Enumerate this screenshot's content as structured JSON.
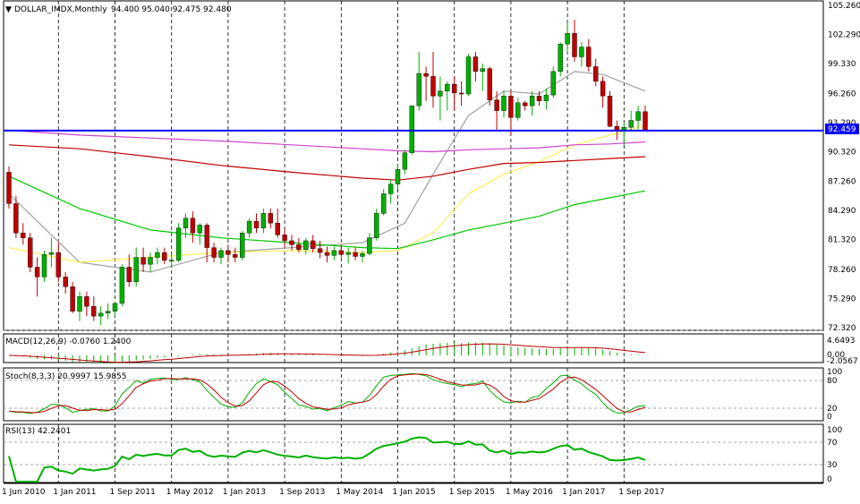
{
  "header": {
    "arrow": "▼",
    "symbol": "DOLLAR_IMDX,Monthly",
    "ohlc": "94.400 95.040 92.475 92.480"
  },
  "colors": {
    "up": "#00b000",
    "down": "#c00000",
    "hline": "#0000ff",
    "ma_grey": "#a0a0a0",
    "ma_yellow": "#ffee55",
    "ma_green": "#00c800",
    "ma_red": "#c00000",
    "ma_magenta": "#cc44cc",
    "grid": "#000000"
  },
  "price_pane": {
    "price_labels": [
      "105.260",
      "102.290",
      "99.330",
      "96.260",
      "93.290",
      "90.320",
      "87.260",
      "84.290",
      "81.320",
      "78.260",
      "75.290",
      "72.320"
    ],
    "current_price_label": "92.459",
    "hline_value": 92.459
  },
  "macd_pane": {
    "label": "MACD(12,26,9) -0.0760 1.2400",
    "axis_labels": [
      "4.6493",
      "0.00",
      "-2.0567"
    ]
  },
  "stoch_pane": {
    "label": "Stoch(8,3,3) 20.9997 15.9855",
    "axis_labels": [
      "100",
      "80",
      "20",
      "0"
    ]
  },
  "rsi_pane": {
    "label": "RSI(13) 42.2401",
    "axis_labels": [
      "100",
      "70",
      "30",
      "0"
    ]
  },
  "time_axis": {
    "labels": [
      "1 Jun 2010",
      "1 Jan 2011",
      "1 Sep 2011",
      "1 May 2012",
      "1 Jan 2013",
      "1 Sep 2013",
      "1 May 2014",
      "1 Jan 2015",
      "1 Sep 2015",
      "1 May 2016",
      "1 Jan 2017",
      "1 Sep 2017"
    ]
  },
  "chart_data": {
    "type": "candlestick",
    "title": "DOLLAR_IMDX,Monthly",
    "ylim": [
      72.32,
      105.26
    ],
    "start": "Jun 2010",
    "candles": [
      [
        88.2,
        88.8,
        84.5,
        85.0
      ],
      [
        85.0,
        85.8,
        81.5,
        82.0
      ],
      [
        82.0,
        83.0,
        80.8,
        81.5
      ],
      [
        81.5,
        82.0,
        78.0,
        78.5
      ],
      [
        78.5,
        79.5,
        75.5,
        77.5
      ],
      [
        77.5,
        80.2,
        77.0,
        79.8
      ],
      [
        79.8,
        81.5,
        78.5,
        80.0
      ],
      [
        80.0,
        81.0,
        77.0,
        77.5
      ],
      [
        77.5,
        78.0,
        75.8,
        76.5
      ],
      [
        76.5,
        77.0,
        73.8,
        74.0
      ],
      [
        74.0,
        76.0,
        73.0,
        75.5
      ],
      [
        75.5,
        76.0,
        73.5,
        74.5
      ],
      [
        74.5,
        75.5,
        73.0,
        73.5
      ],
      [
        73.5,
        74.5,
        72.6,
        73.8
      ],
      [
        73.8,
        74.8,
        73.2,
        74.0
      ],
      [
        74.0,
        75.0,
        73.5,
        74.8
      ],
      [
        74.8,
        78.8,
        74.5,
        78.5
      ],
      [
        78.5,
        79.8,
        76.5,
        77.0
      ],
      [
        77.0,
        80.5,
        76.5,
        79.5
      ],
      [
        79.5,
        80.5,
        78.0,
        78.8
      ],
      [
        78.8,
        80.0,
        78.0,
        79.5
      ],
      [
        79.5,
        80.5,
        78.8,
        80.0
      ],
      [
        80.0,
        80.5,
        78.8,
        79.2
      ],
      [
        79.2,
        79.8,
        78.5,
        79.2
      ],
      [
        79.2,
        83.0,
        79.0,
        82.5
      ],
      [
        82.5,
        84.0,
        81.5,
        83.5
      ],
      [
        83.5,
        84.2,
        81.0,
        82.0
      ],
      [
        82.0,
        83.0,
        80.8,
        82.8
      ],
      [
        82.8,
        83.0,
        79.0,
        80.5
      ],
      [
        80.5,
        81.0,
        79.0,
        79.5
      ],
      [
        79.5,
        80.5,
        78.8,
        80.2
      ],
      [
        80.2,
        80.8,
        79.0,
        79.8
      ],
      [
        79.8,
        80.5,
        79.0,
        79.5
      ],
      [
        79.5,
        82.2,
        79.2,
        82.0
      ],
      [
        82.0,
        83.5,
        81.5,
        83.2
      ],
      [
        83.2,
        84.0,
        82.0,
        82.5
      ],
      [
        82.5,
        84.5,
        82.0,
        84.0
      ],
      [
        84.0,
        84.5,
        82.5,
        83.0
      ],
      [
        83.0,
        84.5,
        81.5,
        81.8
      ],
      [
        81.8,
        82.5,
        80.5,
        81.2
      ],
      [
        81.2,
        81.8,
        80.2,
        80.8
      ],
      [
        80.8,
        81.5,
        80.0,
        80.3
      ],
      [
        80.3,
        81.5,
        79.8,
        81.2
      ],
      [
        81.2,
        81.8,
        80.0,
        80.4
      ],
      [
        80.4,
        81.2,
        79.4,
        80.0
      ],
      [
        80.0,
        80.6,
        79.0,
        79.7
      ],
      [
        79.7,
        80.6,
        79.2,
        80.2
      ],
      [
        80.2,
        80.8,
        79.5,
        79.8
      ],
      [
        79.8,
        80.5,
        78.9,
        80.0
      ],
      [
        80.0,
        80.5,
        79.2,
        79.6
      ],
      [
        79.6,
        80.2,
        79.0,
        79.9
      ],
      [
        79.9,
        82.0,
        79.7,
        81.5
      ],
      [
        81.5,
        84.5,
        81.2,
        84.0
      ],
      [
        84.0,
        86.5,
        83.8,
        86.0
      ],
      [
        86.0,
        87.5,
        85.0,
        87.0
      ],
      [
        87.0,
        89.0,
        86.5,
        88.5
      ],
      [
        88.5,
        90.5,
        88.0,
        90.2
      ],
      [
        90.2,
        95.0,
        90.0,
        95.0
      ],
      [
        95.0,
        100.5,
        94.5,
        98.3
      ],
      [
        98.3,
        99.0,
        95.5,
        98.0
      ],
      [
        98.0,
        100.5,
        94.8,
        96.0
      ],
      [
        96.0,
        98.0,
        93.5,
        96.5
      ],
      [
        96.5,
        97.5,
        94.5,
        97.2
      ],
      [
        97.2,
        98.0,
        94.5,
        96.3
      ],
      [
        96.3,
        97.5,
        95.0,
        96.2
      ],
      [
        96.2,
        100.3,
        96.0,
        100.0
      ],
      [
        100.0,
        100.5,
        97.5,
        98.5
      ],
      [
        98.5,
        99.3,
        96.5,
        98.8
      ],
      [
        98.8,
        99.0,
        95.0,
        95.6
      ],
      [
        95.6,
        96.5,
        92.5,
        94.5
      ],
      [
        94.5,
        96.5,
        93.8,
        96.0
      ],
      [
        96.0,
        96.5,
        92.0,
        93.8
      ],
      [
        93.8,
        95.8,
        93.5,
        95.3
      ],
      [
        95.3,
        95.5,
        94.5,
        95.0
      ],
      [
        95.0,
        96.5,
        94.0,
        96.0
      ],
      [
        96.0,
        96.5,
        95.0,
        95.5
      ],
      [
        95.5,
        96.8,
        94.6,
        96.1
      ],
      [
        96.1,
        99.0,
        95.8,
        98.5
      ],
      [
        98.5,
        101.5,
        98.0,
        101.3
      ],
      [
        101.3,
        103.5,
        100.5,
        102.4
      ],
      [
        102.4,
        103.8,
        99.5,
        100.0
      ],
      [
        100.0,
        101.5,
        99.0,
        101.0
      ],
      [
        101.0,
        101.8,
        98.5,
        99.0
      ],
      [
        99.0,
        99.8,
        97.0,
        97.5
      ],
      [
        97.5,
        98.0,
        94.8,
        96.0
      ],
      [
        96.0,
        96.5,
        92.8,
        92.9
      ],
      [
        92.9,
        93.5,
        91.5,
        92.5
      ],
      [
        92.5,
        93.3,
        91.0,
        92.8
      ],
      [
        92.8,
        94.5,
        92.5,
        93.5
      ],
      [
        93.5,
        95.0,
        92.6,
        94.4
      ],
      [
        94.4,
        95.04,
        92.475,
        92.48
      ]
    ],
    "overlays": [
      {
        "name": "grey",
        "points": [
          [
            0,
            86.0
          ],
          [
            10,
            79.0
          ],
          [
            20,
            78.0
          ],
          [
            30,
            80.0
          ],
          [
            40,
            80.5
          ],
          [
            50,
            81.0
          ],
          [
            56,
            83.0
          ],
          [
            60,
            88.0
          ],
          [
            65,
            94.0
          ],
          [
            70,
            96.5
          ],
          [
            75,
            96.2
          ],
          [
            80,
            98.5
          ],
          [
            84,
            98.2
          ],
          [
            90,
            96.5
          ]
        ]
      },
      {
        "name": "yellow",
        "points": [
          [
            0,
            80.5
          ],
          [
            10,
            79.0
          ],
          [
            20,
            79.5
          ],
          [
            30,
            80.0
          ],
          [
            40,
            80.2
          ],
          [
            50,
            80.0
          ],
          [
            55,
            80.2
          ],
          [
            60,
            82.0
          ],
          [
            65,
            86.0
          ],
          [
            70,
            88.0
          ],
          [
            75,
            89.3
          ],
          [
            80,
            91.0
          ],
          [
            85,
            92.0
          ],
          [
            90,
            93.0
          ]
        ]
      },
      {
        "name": "green",
        "points": [
          [
            0,
            87.8
          ],
          [
            10,
            84.5
          ],
          [
            20,
            82.3
          ],
          [
            30,
            81.5
          ],
          [
            40,
            81.0
          ],
          [
            50,
            80.5
          ],
          [
            55,
            80.4
          ],
          [
            60,
            81.3
          ],
          [
            65,
            82.3
          ],
          [
            70,
            83.0
          ],
          [
            75,
            83.7
          ],
          [
            80,
            84.9
          ],
          [
            85,
            85.6
          ],
          [
            90,
            86.3
          ]
        ]
      },
      {
        "name": "red",
        "points": [
          [
            0,
            91.0
          ],
          [
            10,
            90.6
          ],
          [
            20,
            89.8
          ],
          [
            30,
            88.9
          ],
          [
            40,
            88.2
          ],
          [
            50,
            87.6
          ],
          [
            55,
            87.4
          ],
          [
            60,
            87.8
          ],
          [
            65,
            88.5
          ],
          [
            70,
            89.1
          ],
          [
            75,
            89.2
          ],
          [
            80,
            89.4
          ],
          [
            85,
            89.6
          ],
          [
            90,
            89.8
          ]
        ]
      },
      {
        "name": "magenta",
        "points": [
          [
            0,
            92.5
          ],
          [
            10,
            92.0
          ],
          [
            20,
            91.7
          ],
          [
            30,
            91.4
          ],
          [
            40,
            91.0
          ],
          [
            50,
            90.6
          ],
          [
            55,
            90.4
          ],
          [
            60,
            90.3
          ],
          [
            65,
            90.5
          ],
          [
            70,
            90.6
          ],
          [
            75,
            90.7
          ],
          [
            80,
            91.0
          ],
          [
            85,
            91.1
          ],
          [
            90,
            91.3
          ]
        ]
      }
    ]
  }
}
